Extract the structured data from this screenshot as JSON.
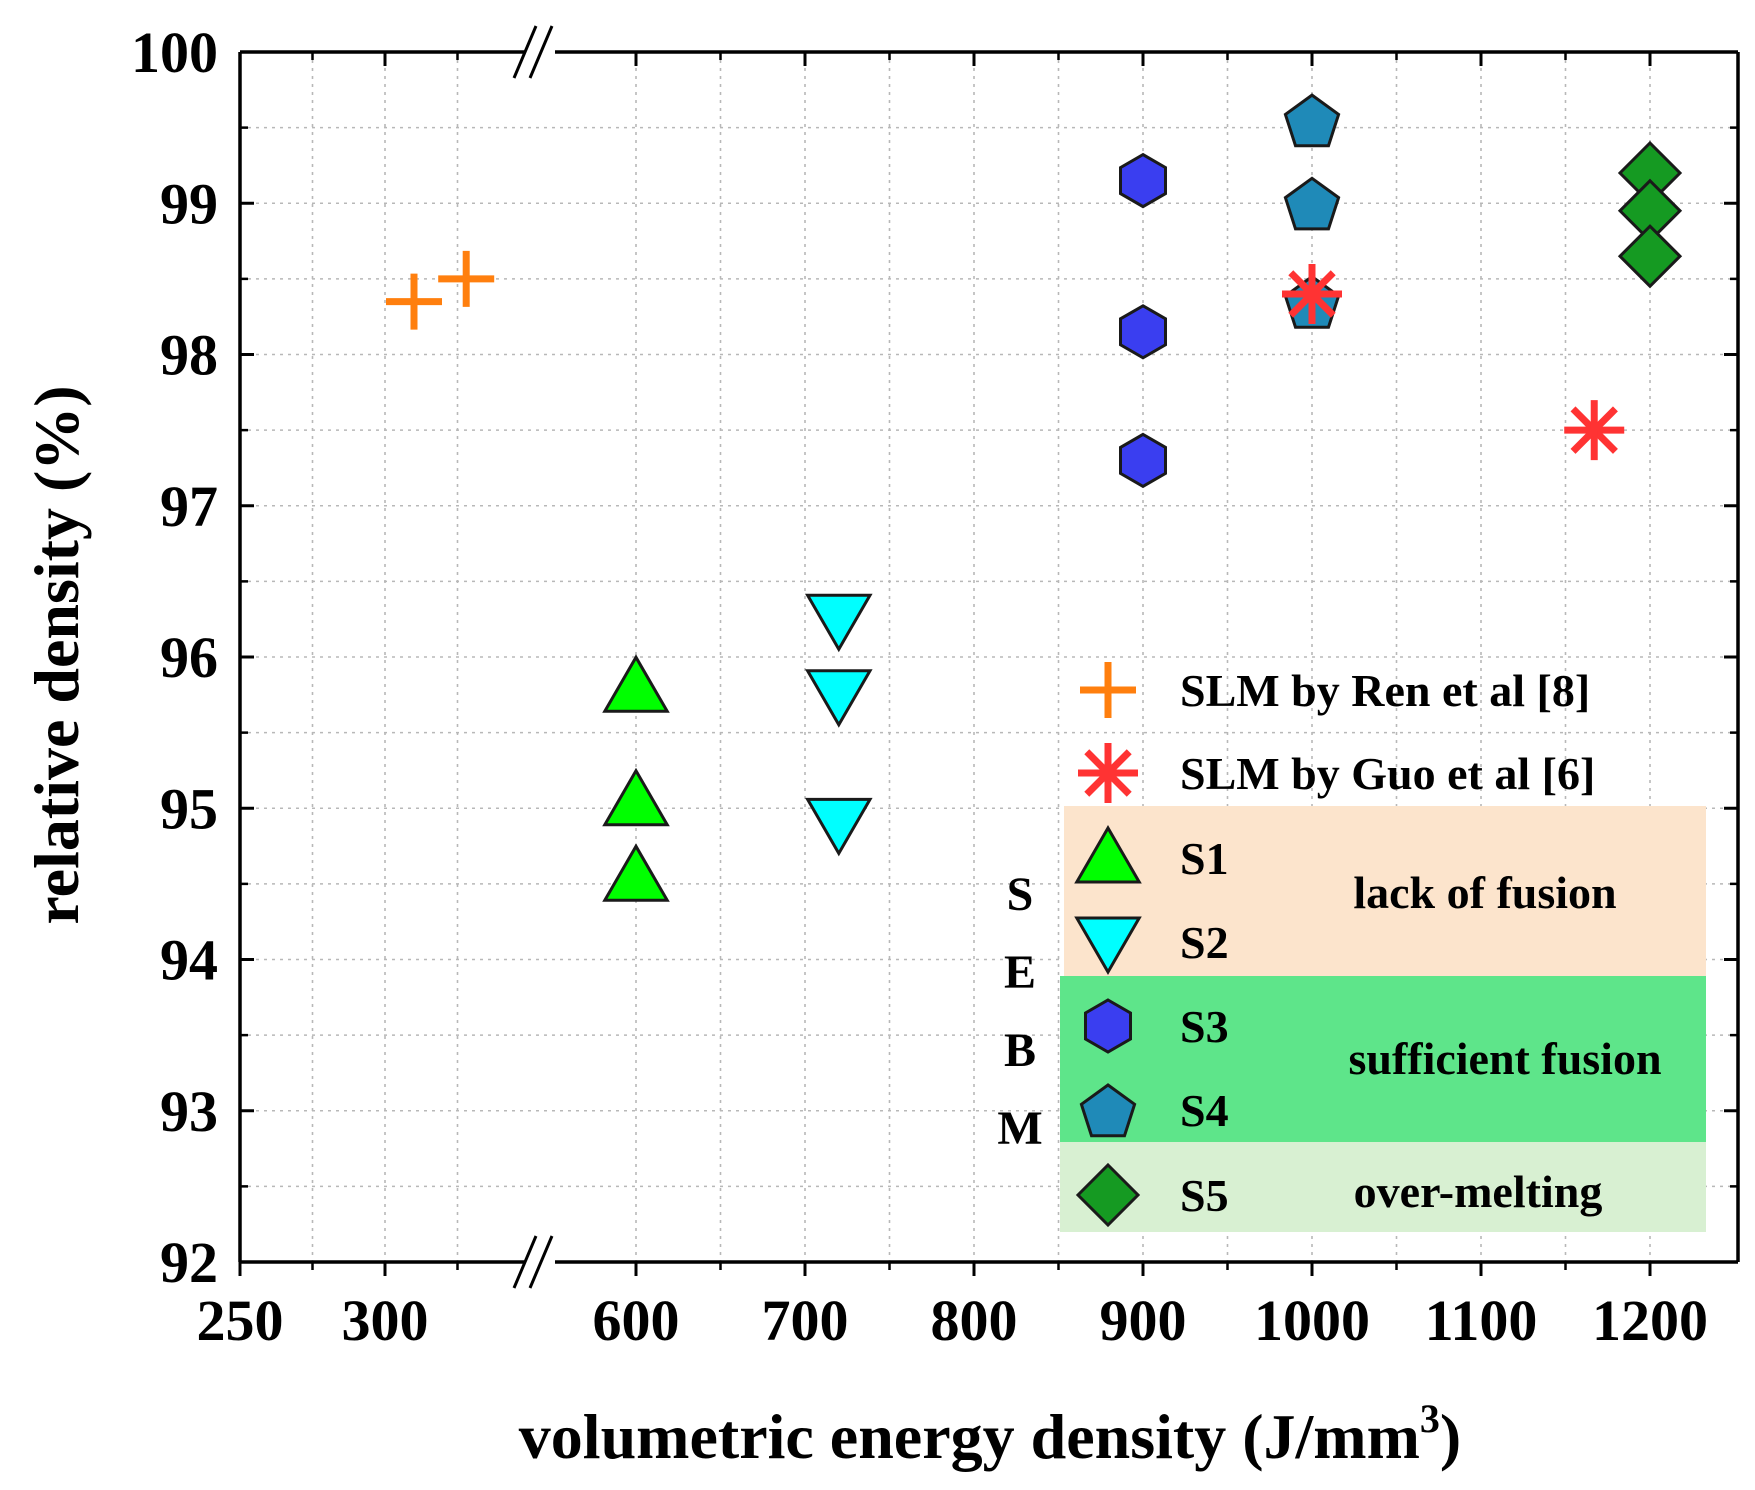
{
  "chart_data": {
    "type": "scatter",
    "title": "",
    "xlabel": "volumetric energy density (J/mm",
    "xlabel_sup": "3",
    "xlabel_end": ")",
    "ylabel": "relative density (%)",
    "ylim": [
      92,
      100
    ],
    "x_axis_break": "between 340 and 580",
    "x_ticks": [
      "250",
      "300",
      "600",
      "700",
      "800",
      "900",
      "1000",
      "1100",
      "1200"
    ],
    "y_ticks": [
      "92",
      "93",
      "94",
      "95",
      "96",
      "97",
      "98",
      "99",
      "100"
    ],
    "series": [
      {
        "name": "SLM by Ren et al [8]",
        "marker": "plus",
        "color": "#ff7f0e",
        "points": [
          [
            310,
            98.35
          ],
          [
            328,
            98.5
          ]
        ]
      },
      {
        "name": "SLM by Guo et al [6]",
        "marker": "asterisk",
        "color": "#ff3333",
        "points": [
          [
            1000,
            98.4
          ],
          [
            1167,
            97.5
          ]
        ]
      },
      {
        "name": "S1",
        "marker": "triangle-up",
        "color": "#00ff00",
        "points": [
          [
            600,
            95.8
          ],
          [
            600,
            95.05
          ],
          [
            600,
            94.55
          ]
        ]
      },
      {
        "name": "S2",
        "marker": "triangle-down",
        "color": "#00ffff",
        "points": [
          [
            720,
            96.25
          ],
          [
            720,
            95.75
          ],
          [
            720,
            94.9
          ]
        ]
      },
      {
        "name": "S3",
        "marker": "hexagon",
        "color": "#3a3ef0",
        "points": [
          [
            900,
            99.15
          ],
          [
            900,
            98.15
          ],
          [
            900,
            97.3
          ]
        ]
      },
      {
        "name": "S4",
        "marker": "pentagon",
        "color": "#1f8ab8",
        "points": [
          [
            1000,
            99.55
          ],
          [
            1000,
            99.0
          ],
          [
            1000,
            98.35
          ]
        ]
      },
      {
        "name": "S5",
        "marker": "diamond",
        "color": "#159a22",
        "points": [
          [
            1200,
            99.2
          ],
          [
            1200,
            98.95
          ],
          [
            1200,
            98.65
          ]
        ]
      }
    ],
    "legend": {
      "position": "bottom-right",
      "ebm_group_label": [
        "S",
        "E",
        "B",
        "M"
      ],
      "regions": [
        {
          "label": "lack of fusion",
          "color": "#fce4cc",
          "members": [
            "S1",
            "S2"
          ]
        },
        {
          "label": "sufficient fusion",
          "color": "#5ee58a",
          "members": [
            "S3",
            "S4"
          ]
        },
        {
          "label": "over-melting",
          "color": "#d8f0d2",
          "members": [
            "S5"
          ]
        }
      ]
    }
  }
}
